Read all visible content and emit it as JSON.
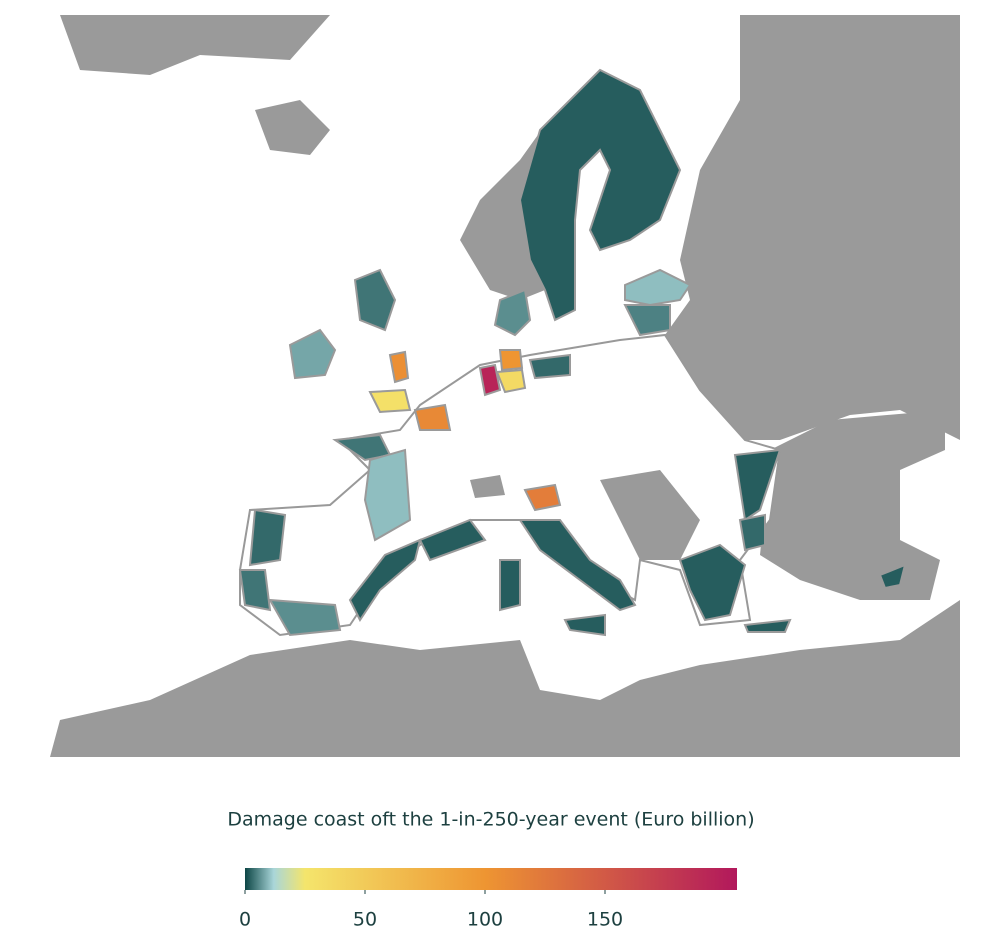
{
  "chart_data": {
    "type": "choropleth",
    "colorbar_title": "Damage coast oft the 1-in-250-year event (Euro billion)",
    "values": [
      2,
      10,
      5,
      6,
      8,
      4,
      105,
      30,
      110,
      195,
      100,
      35,
      3,
      4,
      10,
      3,
      4,
      6,
      2,
      2,
      120,
      2,
      2,
      2,
      2,
      2,
      3,
      2,
      2
    ],
    "colorbar_lim": [
      0,
      205
    ],
    "colorbar_ticks": [
      0,
      50,
      100,
      150
    ],
    "color_stops": [
      [
        0,
        "#0c4545"
      ],
      [
        12,
        "#a9d6d9"
      ],
      [
        25,
        "#f4e56c"
      ],
      [
        100,
        "#ee9532"
      ],
      [
        205,
        "#b2185c"
      ]
    ]
  }
}
